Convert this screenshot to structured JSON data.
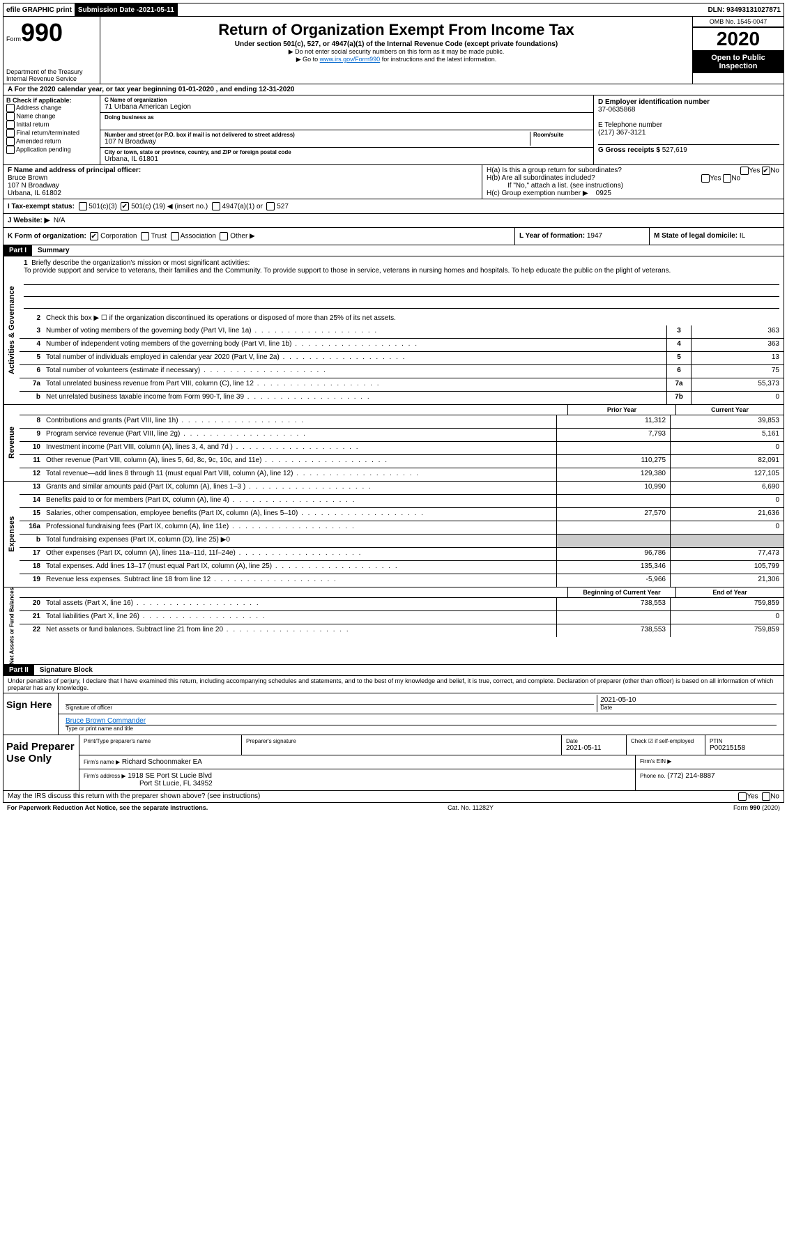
{
  "topbar": {
    "efile": "efile GRAPHIC print",
    "subdate_label": "Submission Date - ",
    "subdate": "2021-05-11",
    "dln_label": "DLN: ",
    "dln": "93493131027871"
  },
  "header": {
    "form_label": "Form",
    "form_num": "990",
    "dept1": "Department of the Treasury",
    "dept2": "Internal Revenue Service",
    "title": "Return of Organization Exempt From Income Tax",
    "sub": "Under section 501(c), 527, or 4947(a)(1) of the Internal Revenue Code (except private foundations)",
    "note1": "▶ Do not enter social security numbers on this form as it may be made public.",
    "note2_pre": "▶ Go to ",
    "note2_link": "www.irs.gov/Form990",
    "note2_post": " for instructions and the latest information.",
    "omb": "OMB No. 1545-0047",
    "year": "2020",
    "inspect": "Open to Public Inspection"
  },
  "lineA": "A For the 2020 calendar year, or tax year beginning 01-01-2020   , and ending 12-31-2020",
  "boxB": {
    "label": "B Check if applicable:",
    "opts": [
      "Address change",
      "Name change",
      "Initial return",
      "Final return/terminated",
      "Amended return",
      "Application pending"
    ]
  },
  "boxC": {
    "name_label": "C Name of organization",
    "name": "71 Urbana American Legion",
    "dba_label": "Doing business as",
    "addr_label": "Number and street (or P.O. box if mail is not delivered to street address)",
    "room_label": "Room/suite",
    "addr": "107 N Broadway",
    "city_label": "City or town, state or province, country, and ZIP or foreign postal code",
    "city": "Urbana, IL  61801"
  },
  "boxD": {
    "label": "D Employer identification number",
    "val": "37-0635868"
  },
  "boxE": {
    "label": "E Telephone number",
    "val": "(217) 367-3121"
  },
  "boxG": {
    "label": "G Gross receipts $",
    "val": "527,619"
  },
  "boxF": {
    "label": "F  Name and address of principal officer:",
    "name": "Bruce Brown",
    "addr1": "107 N Broadway",
    "addr2": "Urbana, IL  61802"
  },
  "boxH": {
    "a": "H(a)  Is this a group return for subordinates?",
    "a_no": "No",
    "b": "H(b)  Are all subordinates included?",
    "b_note": "If \"No,\" attach a list. (see instructions)",
    "c": "H(c)  Group exemption number ▶",
    "c_val": "0925"
  },
  "rowI": {
    "label": "I  Tax-exempt status:",
    "o1": "501(c)(3)",
    "o2_pre": "501(c) ( ",
    "o2_val": "19",
    "o2_post": " ) ◀ (insert no.)",
    "o3": "4947(a)(1) or",
    "o4": "527"
  },
  "rowJ": {
    "label": "J  Website: ▶",
    "val": "N/A"
  },
  "rowK": {
    "k": "K Form of organization:",
    "opts": [
      "Corporation",
      "Trust",
      "Association",
      "Other ▶"
    ],
    "l_label": "L Year of formation:",
    "l_val": "1947",
    "m_label": "M State of legal domicile:",
    "m_val": "IL"
  },
  "part1": {
    "header": "Part I",
    "title": "Summary"
  },
  "activities": {
    "label": "Activities & Governance",
    "q1": "Briefly describe the organization's mission or most significant activities:",
    "q1_text": "To provide support and service to veterans, their families and the Community. To provide support to those in service, veterans in nursing homes and hospitals. To help educate the public on the plight of veterans.",
    "q2": "Check this box ▶ ☐  if the organization discontinued its operations or disposed of more than 25% of its net assets.",
    "rows": [
      {
        "n": "3",
        "t": "Number of voting members of the governing body (Part VI, line 1a)",
        "box": "3",
        "v": "363"
      },
      {
        "n": "4",
        "t": "Number of independent voting members of the governing body (Part VI, line 1b)",
        "box": "4",
        "v": "363"
      },
      {
        "n": "5",
        "t": "Total number of individuals employed in calendar year 2020 (Part V, line 2a)",
        "box": "5",
        "v": "13"
      },
      {
        "n": "6",
        "t": "Total number of volunteers (estimate if necessary)",
        "box": "6",
        "v": "75"
      },
      {
        "n": "7a",
        "t": "Total unrelated business revenue from Part VIII, column (C), line 12",
        "box": "7a",
        "v": "55,373"
      },
      {
        "n": "b",
        "t": "Net unrelated business taxable income from Form 990-T, line 39",
        "box": "7b",
        "v": "0"
      }
    ]
  },
  "revenue": {
    "label": "Revenue",
    "prior": "Prior Year",
    "current": "Current Year",
    "rows": [
      {
        "n": "8",
        "t": "Contributions and grants (Part VIII, line 1h)",
        "p": "11,312",
        "c": "39,853"
      },
      {
        "n": "9",
        "t": "Program service revenue (Part VIII, line 2g)",
        "p": "7,793",
        "c": "5,161"
      },
      {
        "n": "10",
        "t": "Investment income (Part VIII, column (A), lines 3, 4, and 7d )",
        "p": "",
        "c": "0"
      },
      {
        "n": "11",
        "t": "Other revenue (Part VIII, column (A), lines 5, 6d, 8c, 9c, 10c, and 11e)",
        "p": "110,275",
        "c": "82,091"
      },
      {
        "n": "12",
        "t": "Total revenue—add lines 8 through 11 (must equal Part VIII, column (A), line 12)",
        "p": "129,380",
        "c": "127,105"
      }
    ]
  },
  "expenses": {
    "label": "Expenses",
    "rows": [
      {
        "n": "13",
        "t": "Grants and similar amounts paid (Part IX, column (A), lines 1–3 )",
        "p": "10,990",
        "c": "6,690"
      },
      {
        "n": "14",
        "t": "Benefits paid to or for members (Part IX, column (A), line 4)",
        "p": "",
        "c": "0"
      },
      {
        "n": "15",
        "t": "Salaries, other compensation, employee benefits (Part IX, column (A), lines 5–10)",
        "p": "27,570",
        "c": "21,636"
      },
      {
        "n": "16a",
        "t": "Professional fundraising fees (Part IX, column (A), line 11e)",
        "p": "",
        "c": "0"
      },
      {
        "n": "b",
        "t": "Total fundraising expenses (Part IX, column (D), line 25) ▶0",
        "shaded": true
      },
      {
        "n": "17",
        "t": "Other expenses (Part IX, column (A), lines 11a–11d, 11f–24e)",
        "p": "96,786",
        "c": "77,473"
      },
      {
        "n": "18",
        "t": "Total expenses. Add lines 13–17 (must equal Part IX, column (A), line 25)",
        "p": "135,346",
        "c": "105,799"
      },
      {
        "n": "19",
        "t": "Revenue less expenses. Subtract line 18 from line 12",
        "p": "-5,966",
        "c": "21,306"
      }
    ]
  },
  "netassets": {
    "label": "Net Assets or Fund Balances",
    "begin": "Beginning of Current Year",
    "end": "End of Year",
    "rows": [
      {
        "n": "20",
        "t": "Total assets (Part X, line 16)",
        "p": "738,553",
        "c": "759,859"
      },
      {
        "n": "21",
        "t": "Total liabilities (Part X, line 26)",
        "p": "",
        "c": "0"
      },
      {
        "n": "22",
        "t": "Net assets or fund balances. Subtract line 21 from line 20",
        "p": "738,553",
        "c": "759,859"
      }
    ]
  },
  "part2": {
    "header": "Part II",
    "title": "Signature Block"
  },
  "sigtext": "Under penalties of perjury, I declare that I have examined this return, including accompanying schedules and statements, and to the best of my knowledge and belief, it is true, correct, and complete. Declaration of preparer (other than officer) is based on all information of which preparer has any knowledge.",
  "sign": {
    "label": "Sign Here",
    "sig_label": "Signature of officer",
    "date_label": "Date",
    "date": "2021-05-10",
    "name": "Bruce Brown Commander",
    "name_label": "Type or print name and title"
  },
  "prep": {
    "label": "Paid Preparer Use Only",
    "c1": "Print/Type preparer's name",
    "c2": "Preparer's signature",
    "c3": "Date",
    "c3v": "2021-05-11",
    "c4": "Check ☑ if self-employed",
    "c5": "PTIN",
    "c5v": "P00215158",
    "firm_label": "Firm's name    ▶",
    "firm": "Richard Schoonmaker EA",
    "ein_label": "Firm's EIN ▶",
    "addr_label": "Firm's address ▶",
    "addr1": "1918 SE Port St Lucie Blvd",
    "addr2": "Port St Lucie, FL  34952",
    "phone_label": "Phone no.",
    "phone": "(772) 214-8887"
  },
  "discuss": "May the IRS discuss this return with the preparer shown above? (see instructions)",
  "footer": {
    "left": "For Paperwork Reduction Act Notice, see the separate instructions.",
    "mid": "Cat. No. 11282Y",
    "right": "Form 990 (2020)"
  }
}
